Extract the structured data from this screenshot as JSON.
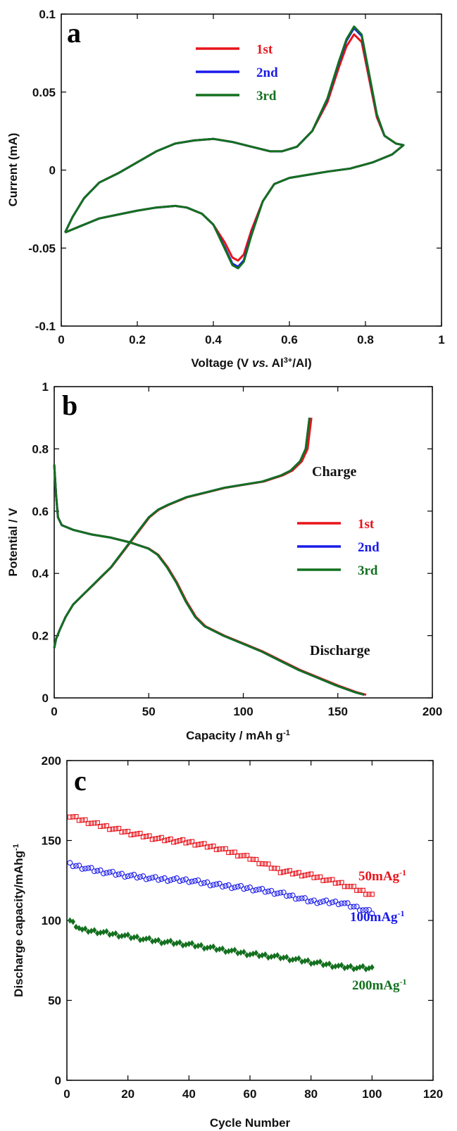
{
  "colors": {
    "red": "#e8141c",
    "blue": "#1a1aea",
    "green": "#14701f"
  },
  "chart_data": [
    {
      "panel": "a",
      "type": "line",
      "xlabel": "Voltage (V vs. Al3+/Al)",
      "xlabel_parts": {
        "pre": "Voltage (V ",
        "italic": "vs.",
        "mid": " Al",
        "sup": "3+",
        "post": "/Al)"
      },
      "ylabel": "Current (mA)",
      "xlim": [
        0,
        1
      ],
      "ylim": [
        -0.1,
        0.1
      ],
      "xticks": [
        "0",
        "0.2",
        "0.4",
        "0.6",
        "0.8",
        "1"
      ],
      "yticks": [
        "-0.1",
        "-0.05",
        "0",
        "0.05",
        "0.1"
      ],
      "legend": {
        "position": "top-left",
        "entries": [
          "1st",
          "2nd",
          "3rd"
        ]
      },
      "series": [
        {
          "name": "1st",
          "color": "red",
          "peak_ox": 0.087,
          "peak_red": -0.058
        },
        {
          "name": "2nd",
          "color": "blue",
          "peak_ox": 0.091,
          "peak_red": -0.062
        },
        {
          "name": "3rd",
          "color": "green",
          "peak_ox": 0.092,
          "peak_red": -0.063
        }
      ],
      "anodic_scan": [
        [
          0.01,
          -0.04
        ],
        [
          0.03,
          -0.03
        ],
        [
          0.06,
          -0.018
        ],
        [
          0.1,
          -0.008
        ],
        [
          0.15,
          -0.002
        ],
        [
          0.2,
          0.005
        ],
        [
          0.25,
          0.012
        ],
        [
          0.3,
          0.017
        ],
        [
          0.35,
          0.019
        ],
        [
          0.4,
          0.02
        ],
        [
          0.45,
          0.018
        ],
        [
          0.5,
          0.015
        ],
        [
          0.55,
          0.012
        ],
        [
          0.58,
          0.012
        ],
        [
          0.62,
          0.015
        ],
        [
          0.66,
          0.025
        ],
        [
          0.7,
          0.045
        ],
        [
          0.73,
          0.068
        ],
        [
          0.75,
          0.082
        ],
        [
          0.77,
          0.09
        ],
        [
          0.79,
          0.085
        ],
        [
          0.81,
          0.06
        ],
        [
          0.83,
          0.035
        ],
        [
          0.85,
          0.022
        ],
        [
          0.88,
          0.017
        ],
        [
          0.9,
          0.016
        ]
      ],
      "cathodic_scan": [
        [
          0.9,
          0.016
        ],
        [
          0.87,
          0.01
        ],
        [
          0.82,
          0.005
        ],
        [
          0.76,
          0.001
        ],
        [
          0.7,
          -0.001
        ],
        [
          0.65,
          -0.003
        ],
        [
          0.6,
          -0.005
        ],
        [
          0.56,
          -0.009
        ],
        [
          0.53,
          -0.02
        ],
        [
          0.5,
          -0.04
        ],
        [
          0.48,
          -0.056
        ],
        [
          0.465,
          -0.06
        ],
        [
          0.45,
          -0.058
        ],
        [
          0.43,
          -0.048
        ],
        [
          0.4,
          -0.035
        ],
        [
          0.37,
          -0.028
        ],
        [
          0.33,
          -0.024
        ],
        [
          0.3,
          -0.023
        ],
        [
          0.25,
          -0.024
        ],
        [
          0.2,
          -0.026
        ],
        [
          0.16,
          -0.028
        ],
        [
          0.1,
          -0.031
        ],
        [
          0.05,
          -0.036
        ],
        [
          0.01,
          -0.04
        ]
      ]
    },
    {
      "panel": "b",
      "type": "line",
      "xlabel": "Capacity / mAh g-1",
      "xlabel_parts": {
        "pre": "Capacity / mAh g",
        "sup": "-1"
      },
      "ylabel": "Potential / V",
      "xlim": [
        0,
        200
      ],
      "ylim": [
        0,
        1
      ],
      "xticks": [
        "0",
        "50",
        "100",
        "150",
        "200"
      ],
      "yticks": [
        "0",
        "0.2",
        "0.4",
        "0.6",
        "0.8",
        "1"
      ],
      "legend": {
        "position": "center-right",
        "entries": [
          "1st",
          "2nd",
          "3rd"
        ]
      },
      "annotations": [
        "Charge",
        "Discharge"
      ],
      "series": [
        {
          "name": "1st",
          "color": "red",
          "charge_end": 136,
          "discharge_end": 165
        },
        {
          "name": "2nd",
          "color": "blue",
          "charge_end": 135,
          "discharge_end": 164
        },
        {
          "name": "3rd",
          "color": "green",
          "charge_end": 135,
          "discharge_end": 164
        }
      ],
      "charge_curve": [
        [
          0,
          0.16
        ],
        [
          1,
          0.19
        ],
        [
          3,
          0.22
        ],
        [
          6,
          0.26
        ],
        [
          10,
          0.3
        ],
        [
          15,
          0.33
        ],
        [
          20,
          0.36
        ],
        [
          25,
          0.39
        ],
        [
          30,
          0.42
        ],
        [
          35,
          0.46
        ],
        [
          40,
          0.5
        ],
        [
          45,
          0.54
        ],
        [
          50,
          0.58
        ],
        [
          55,
          0.605
        ],
        [
          60,
          0.62
        ],
        [
          70,
          0.645
        ],
        [
          80,
          0.66
        ],
        [
          90,
          0.675
        ],
        [
          100,
          0.685
        ],
        [
          110,
          0.695
        ],
        [
          120,
          0.715
        ],
        [
          125,
          0.73
        ],
        [
          130,
          0.76
        ],
        [
          133,
          0.8
        ],
        [
          135,
          0.9
        ]
      ],
      "discharge_curve": [
        [
          0,
          0.75
        ],
        [
          1,
          0.65
        ],
        [
          2,
          0.58
        ],
        [
          4,
          0.555
        ],
        [
          10,
          0.54
        ],
        [
          20,
          0.525
        ],
        [
          30,
          0.515
        ],
        [
          40,
          0.5
        ],
        [
          50,
          0.48
        ],
        [
          55,
          0.46
        ],
        [
          60,
          0.42
        ],
        [
          65,
          0.37
        ],
        [
          70,
          0.31
        ],
        [
          75,
          0.26
        ],
        [
          80,
          0.23
        ],
        [
          90,
          0.2
        ],
        [
          100,
          0.175
        ],
        [
          110,
          0.15
        ],
        [
          120,
          0.12
        ],
        [
          130,
          0.09
        ],
        [
          140,
          0.065
        ],
        [
          150,
          0.04
        ],
        [
          160,
          0.018
        ],
        [
          165,
          0.01
        ]
      ]
    },
    {
      "panel": "c",
      "type": "scatter",
      "xlabel": "Cycle Number",
      "ylabel": "Discharge capacity/mAhg-1",
      "ylabel_parts": {
        "pre": "Discharge capacity/mAhg",
        "sup": "-1"
      },
      "xlim": [
        0,
        120
      ],
      "ylim": [
        0,
        200
      ],
      "xticks": [
        "0",
        "20",
        "40",
        "60",
        "80",
        "100",
        "120"
      ],
      "yticks": [
        "0",
        "50",
        "100",
        "150",
        "200"
      ],
      "series": [
        {
          "name": "50mAg-1",
          "label_base": "50mAg",
          "label_sup": "-1",
          "color": "red",
          "marker": "square",
          "keypoints": [
            [
              1,
              165
            ],
            [
              10,
              160
            ],
            [
              20,
              155
            ],
            [
              30,
              151
            ],
            [
              40,
              149
            ],
            [
              50,
              145
            ],
            [
              60,
              139
            ],
            [
              70,
              131
            ],
            [
              80,
              128
            ],
            [
              90,
              123
            ],
            [
              100,
              116
            ]
          ]
        },
        {
          "name": "100mAg-1",
          "label_base": "100mAg",
          "label_sup": "-1",
          "color": "blue",
          "marker": "circle",
          "keypoints": [
            [
              1,
              135
            ],
            [
              10,
              131
            ],
            [
              20,
              128
            ],
            [
              30,
              126
            ],
            [
              40,
              125
            ],
            [
              50,
              122
            ],
            [
              60,
              120
            ],
            [
              70,
              117
            ],
            [
              80,
              112
            ],
            [
              90,
              111
            ],
            [
              100,
              105
            ]
          ]
        },
        {
          "name": "200mAg-1",
          "label_base": "200mAg",
          "label_sup": "-1",
          "color": "green",
          "marker": "diamond",
          "keypoints": [
            [
              1,
              100
            ],
            [
              5,
              94
            ],
            [
              10,
              93
            ],
            [
              20,
              90
            ],
            [
              30,
              87
            ],
            [
              40,
              85
            ],
            [
              50,
              82
            ],
            [
              60,
              79
            ],
            [
              70,
              77
            ],
            [
              80,
              74
            ],
            [
              90,
              71
            ],
            [
              100,
              70
            ]
          ]
        }
      ]
    }
  ]
}
